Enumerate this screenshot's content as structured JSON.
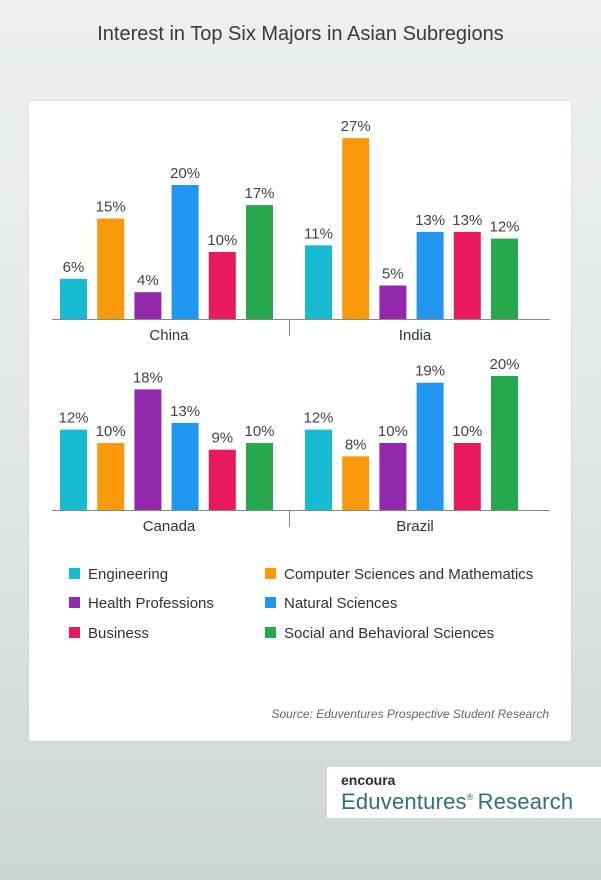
{
  "title": "Interest in Top Six Majors in Asian Subregions",
  "source": "Source: Eduventures Prospective Student Research",
  "logo": {
    "brand": "encoura",
    "product": "Eduventures",
    "reg_mark": "®",
    "suffix": "Research"
  },
  "colors": {
    "Engineering": "#17bcd3",
    "Computer Sciences and Mathematics": "#fa9a0b",
    "Health Professions": "#9229ab",
    "Natural Sciences": "#2196f0",
    "Business": "#e8195f",
    "Social and Behavioral Sciences": "#26a94d"
  },
  "legend": [
    "Engineering",
    "Computer Sciences and Mathematics",
    "Health Professions",
    "Natural Sciences",
    "Business",
    "Social and Behavioral Sciences"
  ],
  "chart_data": {
    "type": "bar",
    "title": "Interest in Top Six Majors in Asian Subregions",
    "unit": "%",
    "series_names": [
      "Engineering",
      "Computer Sciences and Mathematics",
      "Health Professions",
      "Natural Sciences",
      "Business",
      "Social and Behavioral Sciences"
    ],
    "panels": [
      {
        "category": "China",
        "values": [
          6,
          15,
          4,
          20,
          10,
          17
        ]
      },
      {
        "category": "India",
        "values": [
          11,
          27,
          5,
          13,
          13,
          12
        ]
      },
      {
        "category": "Canada",
        "values": [
          12,
          10,
          18,
          13,
          9,
          10
        ]
      },
      {
        "category": "Brazil",
        "values": [
          12,
          8,
          10,
          19,
          10,
          20
        ]
      }
    ],
    "grid": false,
    "legend_position": "bottom"
  }
}
